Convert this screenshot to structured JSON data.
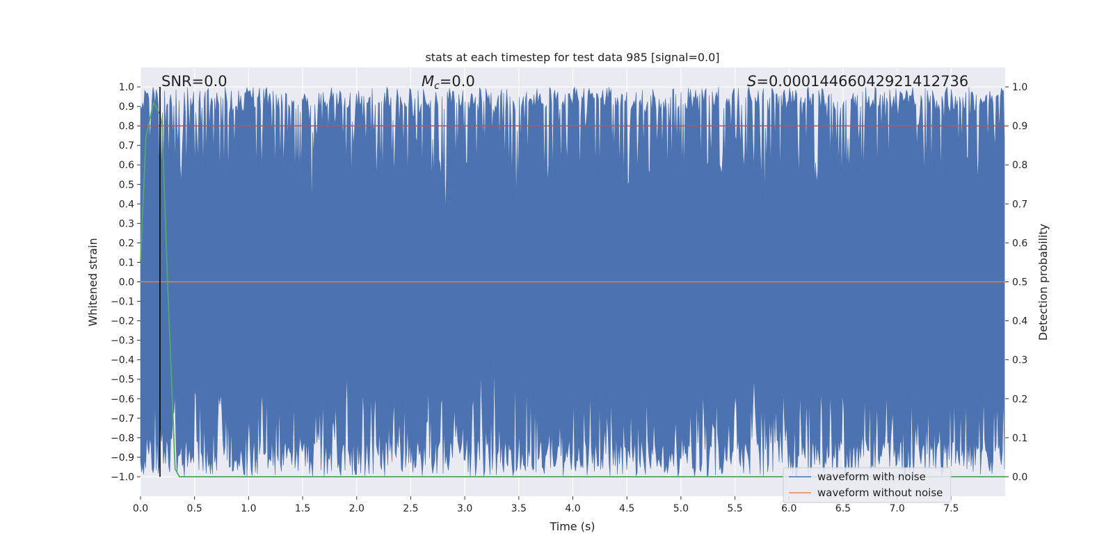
{
  "chart_data": {
    "type": "line",
    "title": "stats at each timestep for test data 985 [signal=0.0]",
    "xlabel": "Time (s)",
    "ylabel_left": "Whitened strain",
    "ylabel_right": "Detection probability",
    "xlim": [
      0.0,
      8.0
    ],
    "ylim_left": [
      -1.1,
      1.1
    ],
    "ylim_right": [
      -0.05,
      1.05
    ],
    "x_ticks": [
      "0.0",
      "0.5",
      "1.0",
      "1.5",
      "2.0",
      "2.5",
      "3.0",
      "3.5",
      "4.0",
      "4.5",
      "5.0",
      "5.5",
      "6.0",
      "6.5",
      "7.0",
      "7.5"
    ],
    "y_ticks_left": [
      "1.0",
      "0.9",
      "0.8",
      "0.7",
      "0.6",
      "0.5",
      "0.4",
      "0.3",
      "0.2",
      "0.1",
      "0.0",
      "−0.1",
      "−0.2",
      "−0.3",
      "−0.4",
      "−0.5",
      "−0.6",
      "−0.7",
      "−0.8",
      "−0.9",
      "−1.0"
    ],
    "y_ticks_right": [
      "1.0",
      "0.9",
      "0.8",
      "0.7",
      "0.6",
      "0.5",
      "0.4",
      "0.3",
      "0.2",
      "0.1",
      "0.0"
    ],
    "annotations": {
      "snr": "SNR=0.0",
      "mc_symbol": "M",
      "mc_sub": "c",
      "mc_value": "=0.0",
      "s_symbol": "S",
      "s_value": "=0.00014466042921412736"
    },
    "grid": true,
    "legend_position": "lower-right",
    "legend": [
      {
        "name": "waveform with noise",
        "color": "#4c72b0"
      },
      {
        "name": "waveform without noise",
        "color": "#dd8452"
      }
    ],
    "series": [
      {
        "name": "waveform with noise",
        "axis": "left",
        "color": "#4c72b0",
        "description": "dense whitened-strain noise spanning roughly -1.0 to 1.0 over the full time range",
        "y_range": [
          -1.0,
          1.0
        ]
      },
      {
        "name": "waveform without noise",
        "axis": "left",
        "color": "#dd8452",
        "x": [
          0.0,
          8.0
        ],
        "y": [
          0.0,
          0.0
        ]
      },
      {
        "axis": "right",
        "color": "#55a868",
        "x": [
          0.0,
          0.05,
          0.12,
          0.18,
          0.2,
          0.25,
          0.32,
          0.36,
          8.0
        ],
        "y": [
          0.55,
          0.87,
          0.96,
          0.93,
          0.9,
          0.5,
          0.02,
          0.0,
          0.0
        ]
      }
    ],
    "threshold_line": {
      "axis": "right",
      "value": 0.9,
      "color": "#c44e52"
    },
    "marker_line": {
      "x": 0.18,
      "color": "#000000"
    }
  }
}
